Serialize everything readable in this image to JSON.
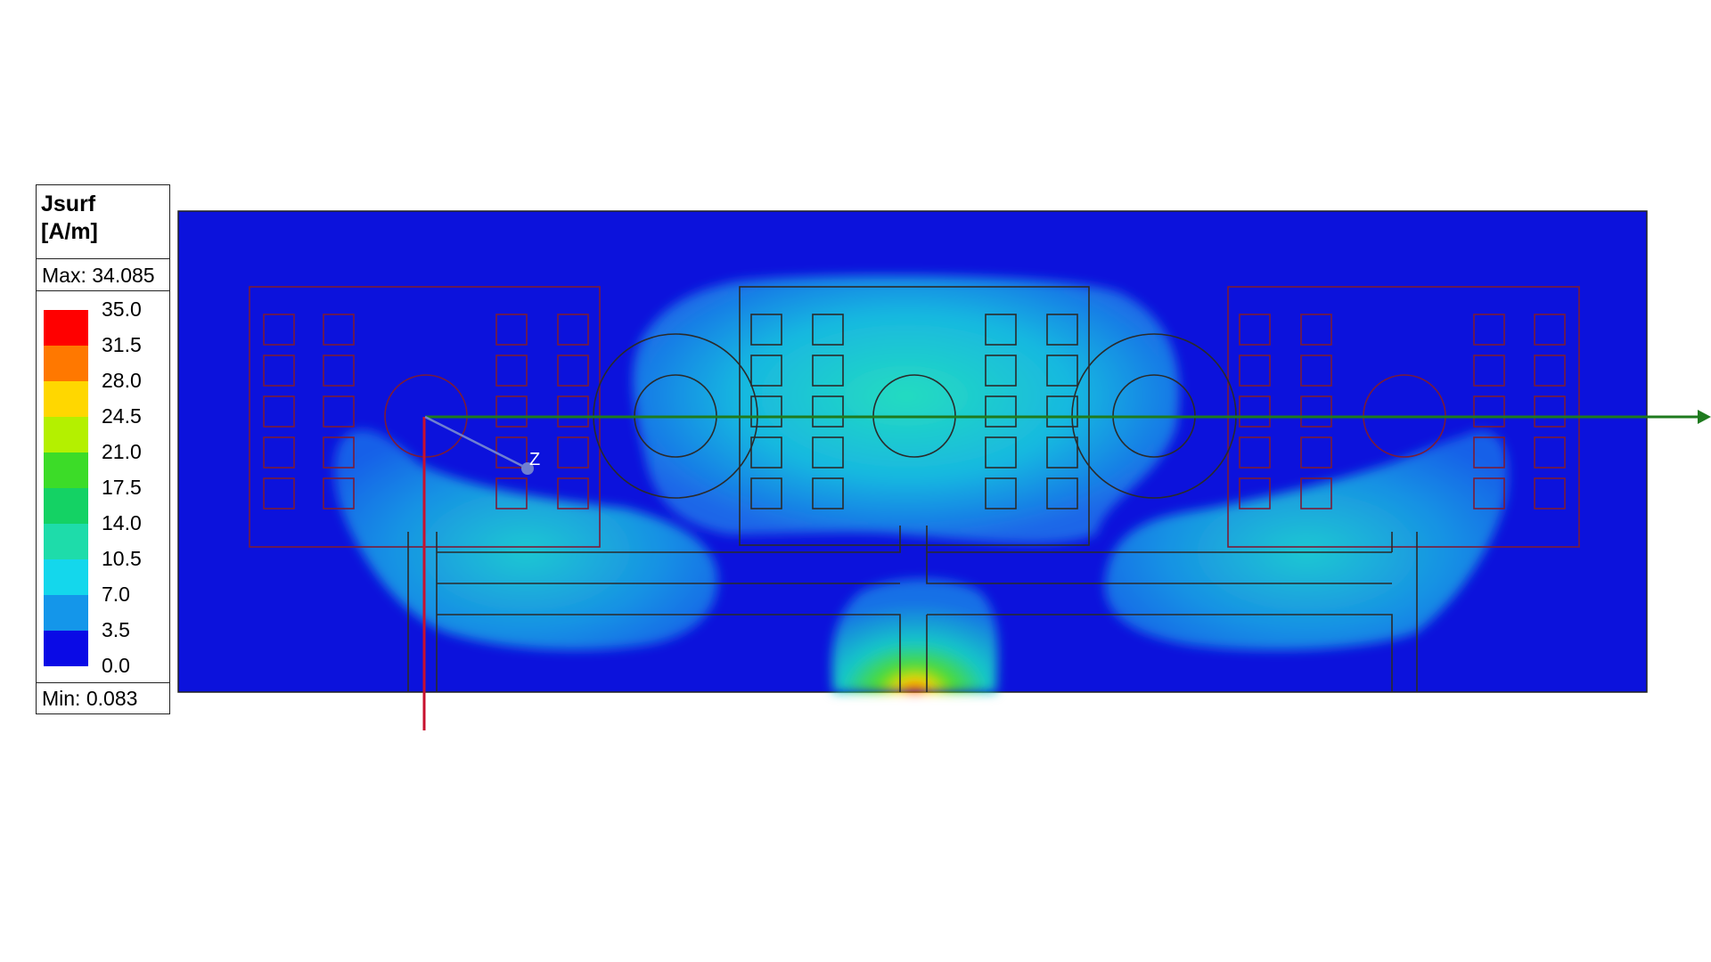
{
  "legend": {
    "title_line1": "Jsurf",
    "title_line2": "[A/m]",
    "max_label": "Max: 34.085",
    "min_label": "Min:  0.083",
    "ticks": [
      "35.0",
      "31.5",
      "28.0",
      "24.5",
      "21.0",
      "17.5",
      "14.0",
      "10.5",
      "7.0",
      "3.5",
      "0.0"
    ],
    "colors": [
      "#ff0000",
      "#ff7800",
      "#ffd700",
      "#b4f000",
      "#3cdc28",
      "#14d264",
      "#1edcaa",
      "#14d7ec",
      "#1496ea",
      "#0a0ae6"
    ]
  },
  "axes": {
    "z_label": "Z",
    "x_color": "#1e7a1e",
    "y_color": "#c8102e",
    "z_color": "#7080d0"
  },
  "colors": {
    "background_field": "#0c12dc",
    "outline": "#222222"
  }
}
